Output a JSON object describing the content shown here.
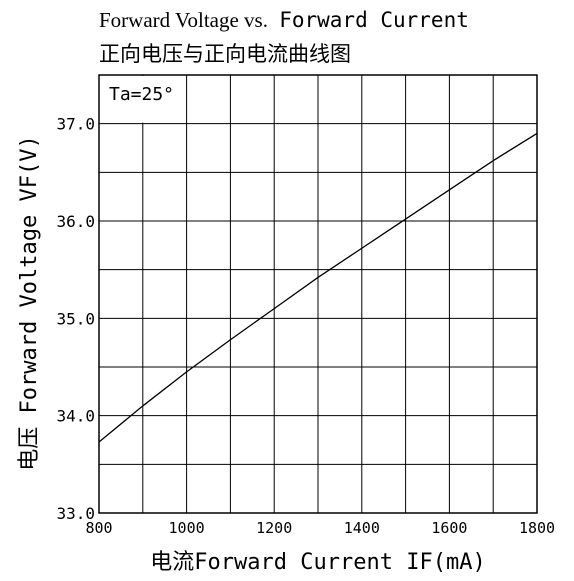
{
  "chart_data": {
    "type": "line",
    "title": "Forward Voltage vs.",
    "title_mono": "Forward Current",
    "subtitle": "正向电压与正向电流曲线图",
    "annotation": "Ta=25°",
    "xlabel": "电流Forward Current IF(mA)",
    "ylabel": "电压 Forward Voltage VF(V)",
    "xlim": [
      800,
      1800
    ],
    "ylim": [
      33.0,
      37.5
    ],
    "x_ticks": [
      800,
      1000,
      1200,
      1400,
      1600,
      1800
    ],
    "x_tick_labels": [
      "800",
      "1000",
      "1200",
      "1400",
      "1600",
      "1800"
    ],
    "y_ticks": [
      33.0,
      34.0,
      35.0,
      36.0,
      37.0
    ],
    "y_tick_labels": [
      "33.0",
      "34.0",
      "35.0",
      "36.0",
      "37.0"
    ],
    "x_grid_step": 100,
    "y_grid_step": 0.5,
    "grid": true,
    "series": [
      {
        "x": [
          800,
          900,
          1000,
          1100,
          1200,
          1300,
          1400,
          1500,
          1600,
          1700,
          1800
        ],
        "y": [
          33.73,
          34.1,
          34.45,
          34.78,
          35.1,
          35.42,
          35.72,
          36.02,
          36.32,
          36.62,
          36.9
        ]
      }
    ],
    "colors": {
      "axis": "#000000",
      "grid": "#000000",
      "line": "#000000"
    }
  }
}
